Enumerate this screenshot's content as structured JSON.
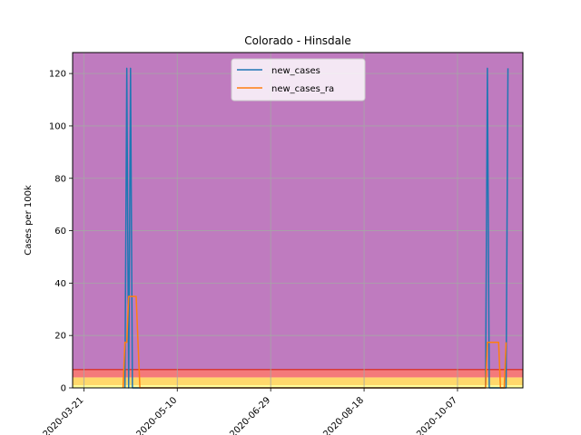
{
  "chart_data": {
    "type": "line",
    "title": "Colorado - Hinsdale",
    "xlabel": "",
    "ylabel": "Cases per 100k",
    "x_start": "2020-03-15",
    "x_end": "2020-11-11",
    "xticks": [
      "2020-03-21",
      "2020-05-10",
      "2020-06-29",
      "2020-08-18",
      "2020-10-07"
    ],
    "ylim": [
      0,
      128
    ],
    "yticks": [
      0,
      20,
      40,
      60,
      80,
      100,
      120
    ],
    "grid": true,
    "legend_position": "top-center",
    "bands": [
      {
        "from": 0,
        "to": 1,
        "color": "#ffff99"
      },
      {
        "from": 1,
        "to": 4,
        "color": "#ffd86b"
      },
      {
        "from": 4,
        "to": 7,
        "color": "#f47a7a"
      },
      {
        "from": 7,
        "to": 128,
        "color": "#bf7bbf"
      }
    ],
    "band_lines": [
      {
        "y": 7,
        "color": "#d43a3a"
      }
    ],
    "series": [
      {
        "name": "new_cases",
        "color": "#1f77b4",
        "points": [
          [
            "2020-04-12",
            0
          ],
          [
            "2020-04-13",
            122
          ],
          [
            "2020-04-14",
            0
          ],
          [
            "2020-04-15",
            122
          ],
          [
            "2020-04-16",
            0
          ],
          [
            "2020-10-22",
            0
          ],
          [
            "2020-10-23",
            122
          ],
          [
            "2020-10-24",
            0
          ],
          [
            "2020-11-02",
            0
          ],
          [
            "2020-11-03",
            122
          ]
        ]
      },
      {
        "name": "new_cases_ra",
        "color": "#ff7f0e",
        "points": [
          [
            "2020-04-11",
            0
          ],
          [
            "2020-04-12",
            17.4
          ],
          [
            "2020-04-13",
            17.4
          ],
          [
            "2020-04-14",
            34.9
          ],
          [
            "2020-04-18",
            34.9
          ],
          [
            "2020-04-19",
            17.4
          ],
          [
            "2020-04-20",
            0
          ],
          [
            "2020-10-22",
            0
          ],
          [
            "2020-10-23",
            17.4
          ],
          [
            "2020-10-29",
            17.4
          ],
          [
            "2020-10-30",
            0
          ],
          [
            "2020-11-01",
            0
          ],
          [
            "2020-11-02",
            17.4
          ]
        ]
      }
    ]
  }
}
